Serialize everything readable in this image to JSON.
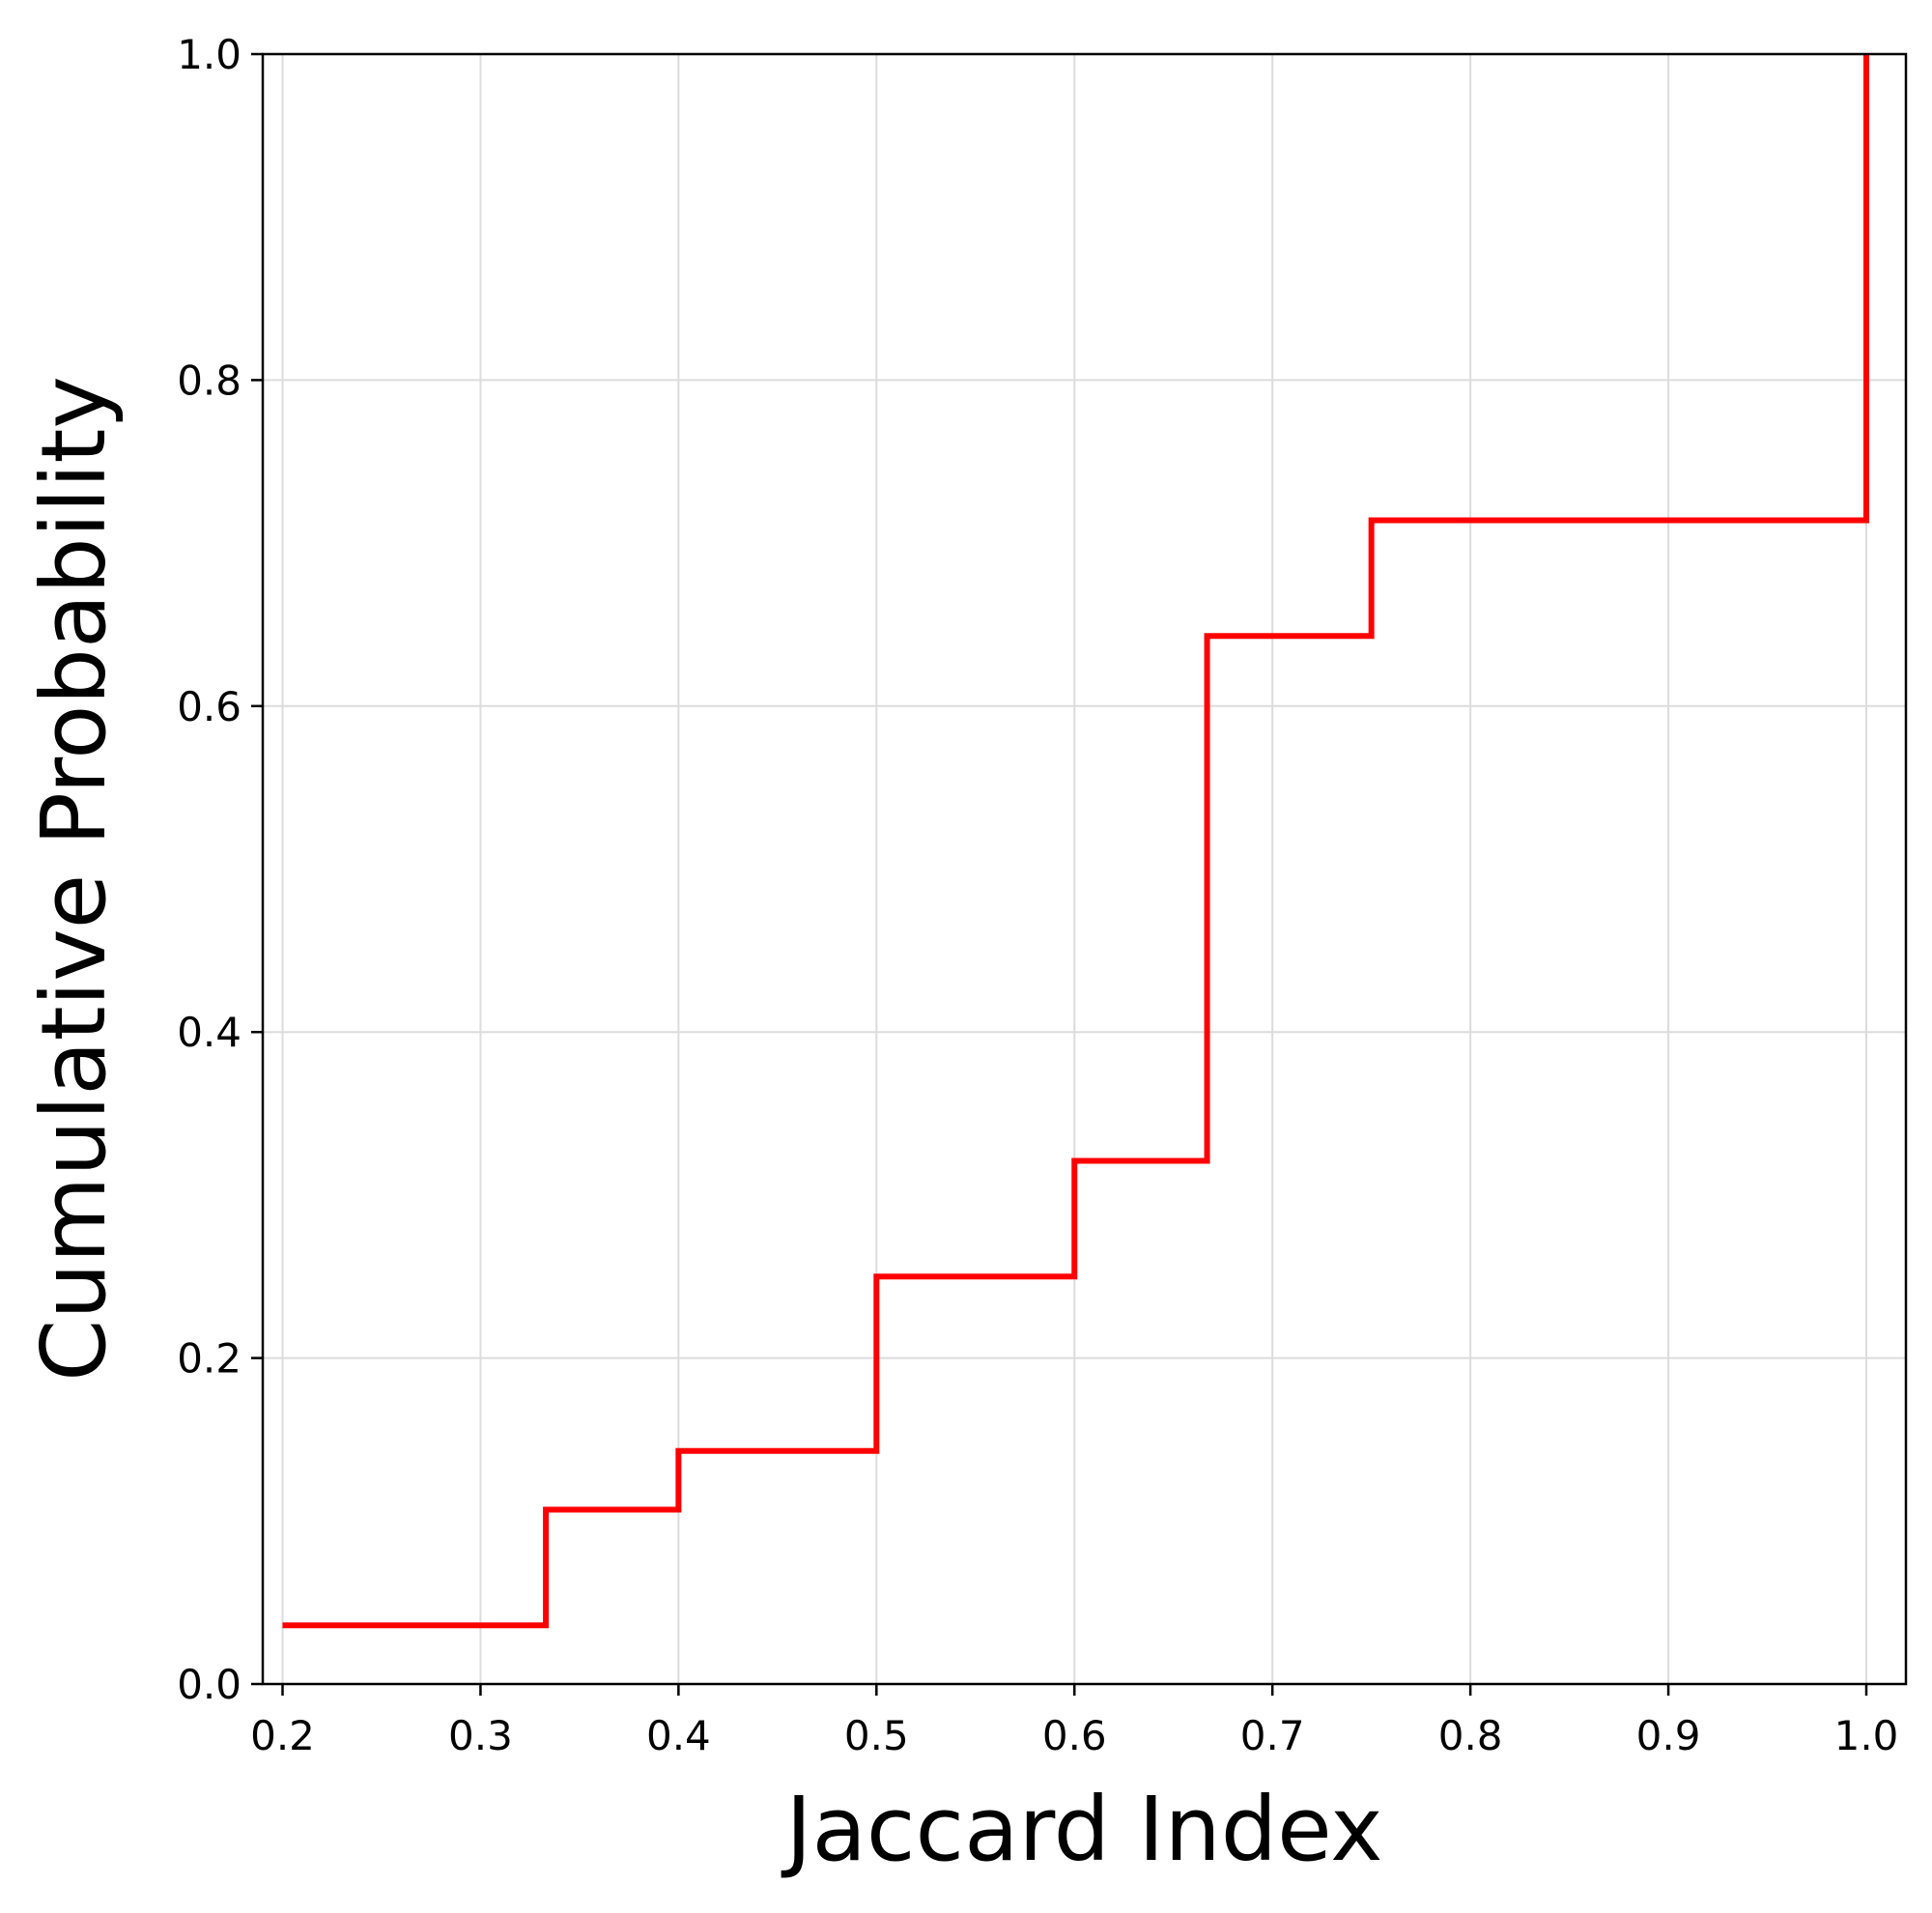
{
  "chart_data": {
    "type": "line",
    "drawstyle": "steps-post",
    "title": "",
    "xlabel": "Jaccard Index",
    "ylabel": "Cumulative Probability",
    "xlim": [
      0.19,
      1.02
    ],
    "ylim": [
      0.0,
      1.0
    ],
    "xticks": [
      0.2,
      0.3,
      0.4,
      0.5,
      0.6,
      0.7,
      0.8,
      0.9,
      1.0
    ],
    "xtick_labels": [
      "0.2",
      "0.3",
      "0.4",
      "0.5",
      "0.6",
      "0.7",
      "0.8",
      "0.9",
      "1.0"
    ],
    "yticks": [
      0.0,
      0.2,
      0.4,
      0.6,
      0.8,
      1.0
    ],
    "ytick_labels": [
      "0.0",
      "0.2",
      "0.4",
      "0.6",
      "0.8",
      "1.0"
    ],
    "grid": true,
    "legend": false,
    "series": [
      {
        "color": "#ff0000",
        "x": [
          0.2,
          0.333,
          0.4,
          0.5,
          0.6,
          0.667,
          0.75,
          1.0,
          1.0
        ],
        "y": [
          0.036,
          0.107,
          0.143,
          0.25,
          0.321,
          0.643,
          0.714,
          0.714,
          1.0
        ]
      }
    ]
  }
}
